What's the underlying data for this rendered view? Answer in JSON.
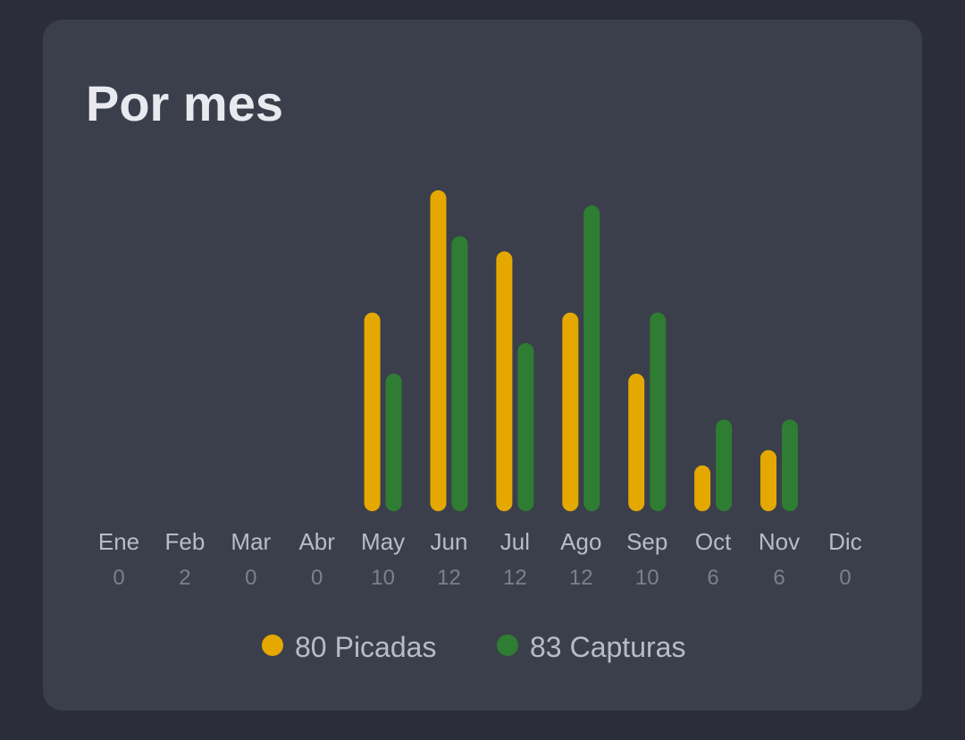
{
  "chart_data": {
    "type": "bar",
    "title": "Por mes",
    "categories": [
      "Ene",
      "Feb",
      "Mar",
      "Abr",
      "May",
      "Jun",
      "Jul",
      "Ago",
      "Sep",
      "Oct",
      "Nov",
      "Dic"
    ],
    "counts": [
      0,
      2,
      0,
      0,
      10,
      12,
      12,
      12,
      10,
      6,
      6,
      0
    ],
    "series": [
      {
        "name": "Picadas",
        "total": 80,
        "color": "#e5a800",
        "values": [
          0,
          0,
          0,
          0,
          13,
          21,
          17,
          13,
          9,
          3,
          4,
          0
        ]
      },
      {
        "name": "Capturas",
        "total": 83,
        "color": "#2e7d32",
        "values": [
          0,
          0,
          0,
          0,
          9,
          18,
          11,
          20,
          13,
          6,
          6,
          0
        ]
      }
    ]
  }
}
